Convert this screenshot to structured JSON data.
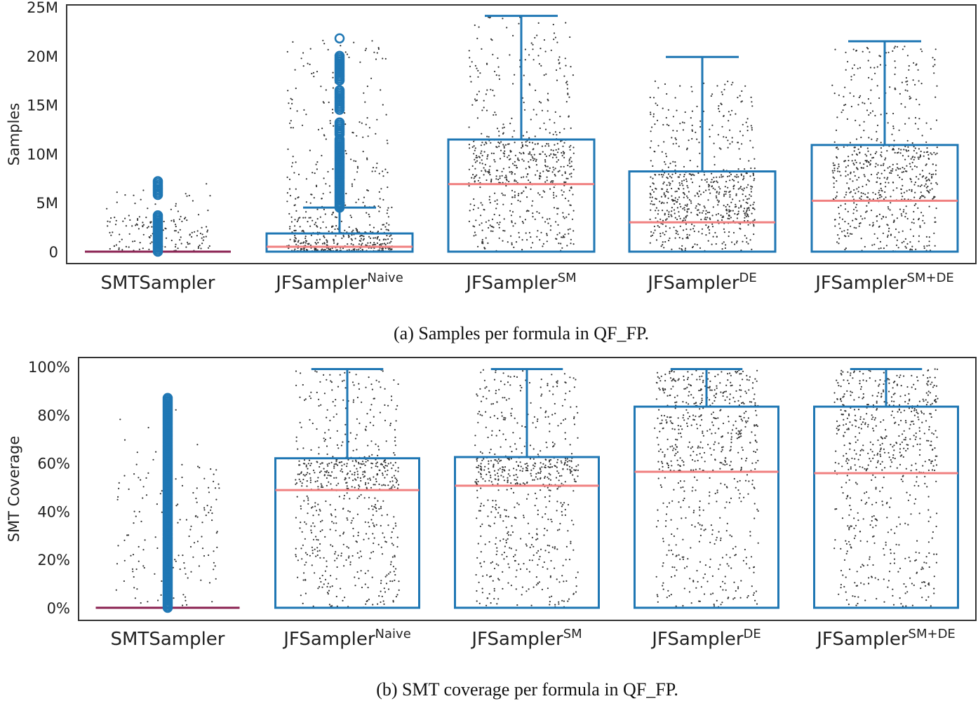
{
  "chart_data": [
    {
      "type": "box",
      "caption": "(a) Samples per formula in QF_FP.",
      "ylabel": "Samples",
      "ylim": [
        0,
        25000000
      ],
      "yticks": [
        0,
        5000000,
        10000000,
        15000000,
        20000000,
        25000000
      ],
      "ytick_labels": [
        "0",
        "5M",
        "10M",
        "15M",
        "20M",
        "25M"
      ],
      "grid": false,
      "categories": [
        {
          "name": "SMTSampler",
          "sup": ""
        },
        {
          "name": "JFSampler",
          "sup": "Naive"
        },
        {
          "name": "JFSampler",
          "sup": "SM"
        },
        {
          "name": "JFSampler",
          "sup": "DE"
        },
        {
          "name": "JFSampler",
          "sup": "SM+DE"
        }
      ],
      "boxes": [
        {
          "q1": 0,
          "median": 0,
          "q3": 0,
          "whisker_low": 0,
          "whisker_high": 0,
          "outlier_ranges": [
            [
              0,
              3700000
            ],
            [
              5800000,
              7200000
            ]
          ],
          "points_max": 7200000
        },
        {
          "q1": 0,
          "median": 500000,
          "q3": 1860000,
          "whisker_low": 0,
          "whisker_high": 4500000,
          "outlier_ranges": [
            [
              4500000,
              11500000
            ],
            [
              12000000,
              13200000
            ],
            [
              14500000,
              16500000
            ],
            [
              17500000,
              20000000
            ],
            [
              21800000,
              21800000
            ]
          ],
          "points_max": 21800000
        },
        {
          "q1": 0,
          "median": 6900000,
          "q3": 11460000,
          "whisker_low": 0,
          "whisker_high": 24100000,
          "outlier_ranges": [],
          "points_max": 24000000
        },
        {
          "q1": 0,
          "median": 3000000,
          "q3": 8200000,
          "whisker_low": 0,
          "whisker_high": 19900000,
          "outlier_ranges": [],
          "points_max": 17500000
        },
        {
          "q1": 0,
          "median": 5200000,
          "q3": 10900000,
          "whisker_low": 0,
          "whisker_high": 21500000,
          "outlier_ranges": [],
          "points_max": 21000000
        }
      ],
      "colors": {
        "box": "#1f77b4",
        "median": "#f08080",
        "points": "#333333"
      }
    },
    {
      "type": "box",
      "caption": "(b) SMT coverage per formula in QF_FP.",
      "ylabel": "SMT Coverage",
      "ylim": [
        0,
        100
      ],
      "yticks": [
        0,
        20,
        40,
        60,
        80,
        100
      ],
      "ytick_labels": [
        "0%",
        "20%",
        "40%",
        "60%",
        "80%",
        "100%"
      ],
      "grid": false,
      "categories": [
        {
          "name": "SMTSampler",
          "sup": ""
        },
        {
          "name": "JFSampler",
          "sup": "Naive"
        },
        {
          "name": "JFSampler",
          "sup": "SM"
        },
        {
          "name": "JFSampler",
          "sup": "DE"
        },
        {
          "name": "JFSampler",
          "sup": "SM+DE"
        }
      ],
      "boxes": [
        {
          "q1": 0,
          "median": 0,
          "q3": 0,
          "whisker_low": 0,
          "whisker_high": 0,
          "outlier_ranges": [
            [
              0,
              87
            ]
          ],
          "points_max": 87
        },
        {
          "q1": 0,
          "median": 48.8,
          "q3": 62,
          "whisker_low": 0,
          "whisker_high": 99,
          "outlier_ranges": [],
          "points_max": 99
        },
        {
          "q1": 0,
          "median": 50.6,
          "q3": 62.5,
          "whisker_low": 0,
          "whisker_high": 99,
          "outlier_ranges": [],
          "points_max": 99
        },
        {
          "q1": 0,
          "median": 56.4,
          "q3": 83.4,
          "whisker_low": 0,
          "whisker_high": 99,
          "outlier_ranges": [],
          "points_max": 99
        },
        {
          "q1": 0,
          "median": 55.8,
          "q3": 83.4,
          "whisker_low": 0,
          "whisker_high": 99,
          "outlier_ranges": [],
          "points_max": 99
        }
      ],
      "colors": {
        "box": "#1f77b4",
        "median": "#f08080",
        "points": "#333333"
      }
    }
  ]
}
